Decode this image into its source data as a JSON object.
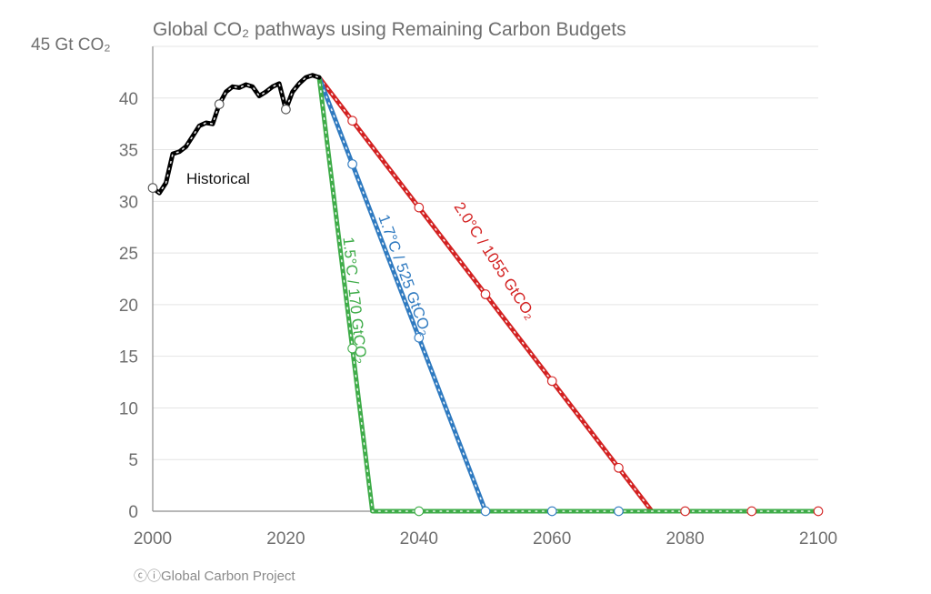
{
  "chart_data": {
    "type": "line",
    "title": "Global CO₂ pathways using Remaining Carbon Budgets",
    "y_unit_label": "45 Gt CO₂",
    "xlim": [
      2000,
      2100
    ],
    "ylim": [
      0,
      45
    ],
    "x_ticks": [
      "2000",
      "2020",
      "2040",
      "2060",
      "2080",
      "2100"
    ],
    "y_ticks": [
      "0",
      "5",
      "10",
      "15",
      "20",
      "25",
      "30",
      "35",
      "40"
    ],
    "grid": "horizontal",
    "annotations": {
      "historical": "Historical",
      "p15": "1.5°C / 170 GtCO₂",
      "p17": "1.7°C / 525 GtCO₂",
      "p20": "2.0°C / 1055 GtCO₂"
    },
    "series": [
      {
        "color": "#000000",
        "x": [
          2000,
          2001,
          2002,
          2003,
          2004,
          2005,
          2006,
          2007,
          2008,
          2009,
          2010,
          2011,
          2012,
          2013,
          2014,
          2015,
          2016,
          2017,
          2018,
          2019,
          2020,
          2021,
          2022,
          2023,
          2024,
          2025
        ],
        "y": [
          31.3,
          30.8,
          31.8,
          34.6,
          34.8,
          35.3,
          36.3,
          37.3,
          37.6,
          37.5,
          39.4,
          40.6,
          41.1,
          41.0,
          41.3,
          41.1,
          40.2,
          40.6,
          41.1,
          41.4,
          38.9,
          40.6,
          41.4,
          42.0,
          42.2,
          42.0
        ],
        "markers_x": [
          2000,
          2010,
          2020
        ]
      },
      {
        "color": "#3fac49",
        "x": [
          2025,
          2033,
          2040,
          2050,
          2060,
          2070,
          2080,
          2090,
          2100
        ],
        "y": [
          42.0,
          0,
          0,
          0,
          0,
          0,
          0,
          0,
          0
        ],
        "markers_x": [
          2030,
          2040
        ]
      },
      {
        "color": "#2f7ac0",
        "x": [
          2025,
          2050,
          2060,
          2070,
          2080,
          2090,
          2100
        ],
        "y": [
          42.0,
          0,
          0,
          0,
          0,
          0,
          0
        ],
        "markers_x": [
          2030,
          2040,
          2050,
          2060,
          2070
        ]
      },
      {
        "color": "#d32222",
        "x": [
          2025,
          2075,
          2080,
          2090,
          2100
        ],
        "y": [
          42.0,
          0,
          0,
          0,
          0
        ],
        "markers_x": [
          2030,
          2040,
          2050,
          2060,
          2070,
          2080,
          2090,
          2100
        ]
      }
    ]
  },
  "credit": "Global Carbon Project"
}
